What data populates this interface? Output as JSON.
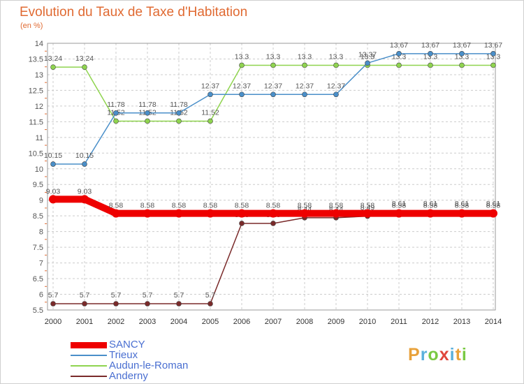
{
  "chart_data": {
    "type": "line",
    "title": "Evolution du Taux de Taxe d'Habitation",
    "subtitle": "(en %)",
    "x": [
      "2000",
      "2001",
      "2002",
      "2003",
      "2004",
      "2005",
      "2006",
      "2007",
      "2008",
      "2009",
      "2010",
      "2011",
      "2012",
      "2013",
      "2014"
    ],
    "ylim": [
      5.5,
      14
    ],
    "yticks": [
      "5.5",
      "6",
      "6.5",
      "7",
      "7.5",
      "8",
      "8.5",
      "9",
      "9.5",
      "10",
      "10.5",
      "11",
      "11.5",
      "12",
      "12.5",
      "13",
      "13.5",
      "14"
    ],
    "grid": true,
    "legend_position": "bottom-left",
    "series": [
      {
        "name": "SANCY",
        "color": "#ee0000",
        "labels_shown": true,
        "values": [
          9.03,
          9.03,
          8.58,
          8.58,
          8.58,
          8.58,
          8.58,
          8.58,
          8.58,
          8.58,
          8.58,
          8.58,
          8.58,
          8.58,
          8.58
        ]
      },
      {
        "name": "Trieux",
        "color": "#4a8fc9",
        "labels_shown": true,
        "values": [
          10.15,
          10.15,
          11.78,
          11.78,
          11.78,
          12.37,
          12.37,
          12.37,
          12.37,
          12.37,
          13.37,
          13.67,
          13.67,
          13.67,
          13.67
        ]
      },
      {
        "name": "Audun-le-Roman",
        "color": "#8fd44f",
        "labels_shown": true,
        "values": [
          13.24,
          13.24,
          11.52,
          11.52,
          11.52,
          11.52,
          13.3,
          13.3,
          13.3,
          13.3,
          13.3,
          13.3,
          13.3,
          13.3,
          13.3
        ]
      },
      {
        "name": "Anderny",
        "color": "#7a2a2a",
        "labels_shown": true,
        "values": [
          5.7,
          5.7,
          5.7,
          5.7,
          5.7,
          5.7,
          8.26,
          8.26,
          8.44,
          8.44,
          8.49,
          8.61,
          8.61,
          8.61,
          8.61
        ]
      }
    ]
  },
  "logo": {
    "letters": [
      "P",
      "r",
      "o",
      "x",
      "i",
      "t",
      "i"
    ],
    "colors": [
      "#e8a13a",
      "#5ab0dc",
      "#7ac943",
      "#e0463b",
      "#5ab0dc",
      "#e8a13a",
      "#7ac943"
    ]
  }
}
